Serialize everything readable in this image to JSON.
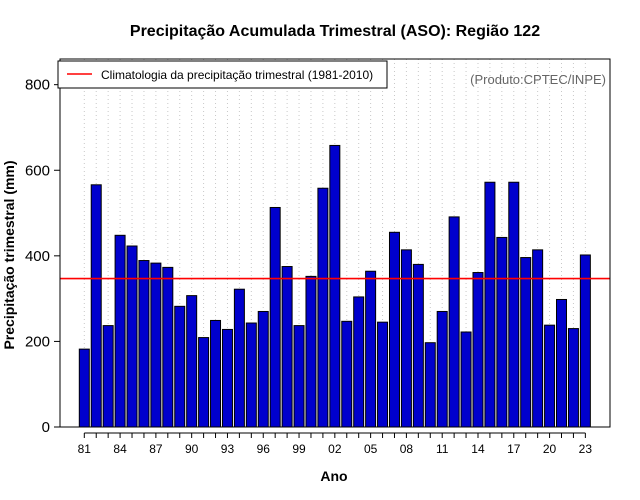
{
  "chart_data": {
    "type": "bar",
    "title": "Precipitação Acumulada Trimestral (ASO): Região 122",
    "xlabel": "Ano",
    "ylabel": "Precipitação trimestral (mm)",
    "ylim": [
      0,
      860
    ],
    "yticks": [
      0,
      200,
      400,
      600,
      800
    ],
    "grid": "vertical-dotted",
    "source_note": "(Produto:CPTEC/INPE)",
    "legend": {
      "placement": "top-left",
      "entries": [
        {
          "label": "Climatologia da precipitação trimestral (1981-2010)",
          "color": "#ff0000"
        }
      ]
    },
    "climatology": 347,
    "categories": [
      "81",
      "82",
      "83",
      "84",
      "85",
      "86",
      "87",
      "88",
      "89",
      "90",
      "91",
      "92",
      "93",
      "94",
      "95",
      "96",
      "97",
      "98",
      "99",
      "00",
      "01",
      "02",
      "03",
      "04",
      "05",
      "06",
      "07",
      "08",
      "09",
      "10",
      "11",
      "12",
      "13",
      "14",
      "15",
      "16",
      "17",
      "18",
      "19",
      "20",
      "21",
      "22",
      "23"
    ],
    "values": [
      182,
      566,
      237,
      448,
      423,
      389,
      383,
      373,
      282,
      307,
      209,
      249,
      228,
      322,
      243,
      270,
      513,
      375,
      237,
      352,
      558,
      658,
      247,
      304,
      364,
      245,
      455,
      414,
      380,
      197,
      270,
      491,
      222,
      361,
      572,
      443,
      572,
      396,
      414,
      238,
      298,
      230,
      402
    ],
    "xtick_labels": [
      "81",
      "84",
      "87",
      "90",
      "93",
      "96",
      "99",
      "02",
      "05",
      "08",
      "11",
      "14",
      "17",
      "20",
      "23"
    ],
    "bar_fill": "#0000cd",
    "bar_stroke": "#000000",
    "climatology_color": "#ff0000"
  }
}
